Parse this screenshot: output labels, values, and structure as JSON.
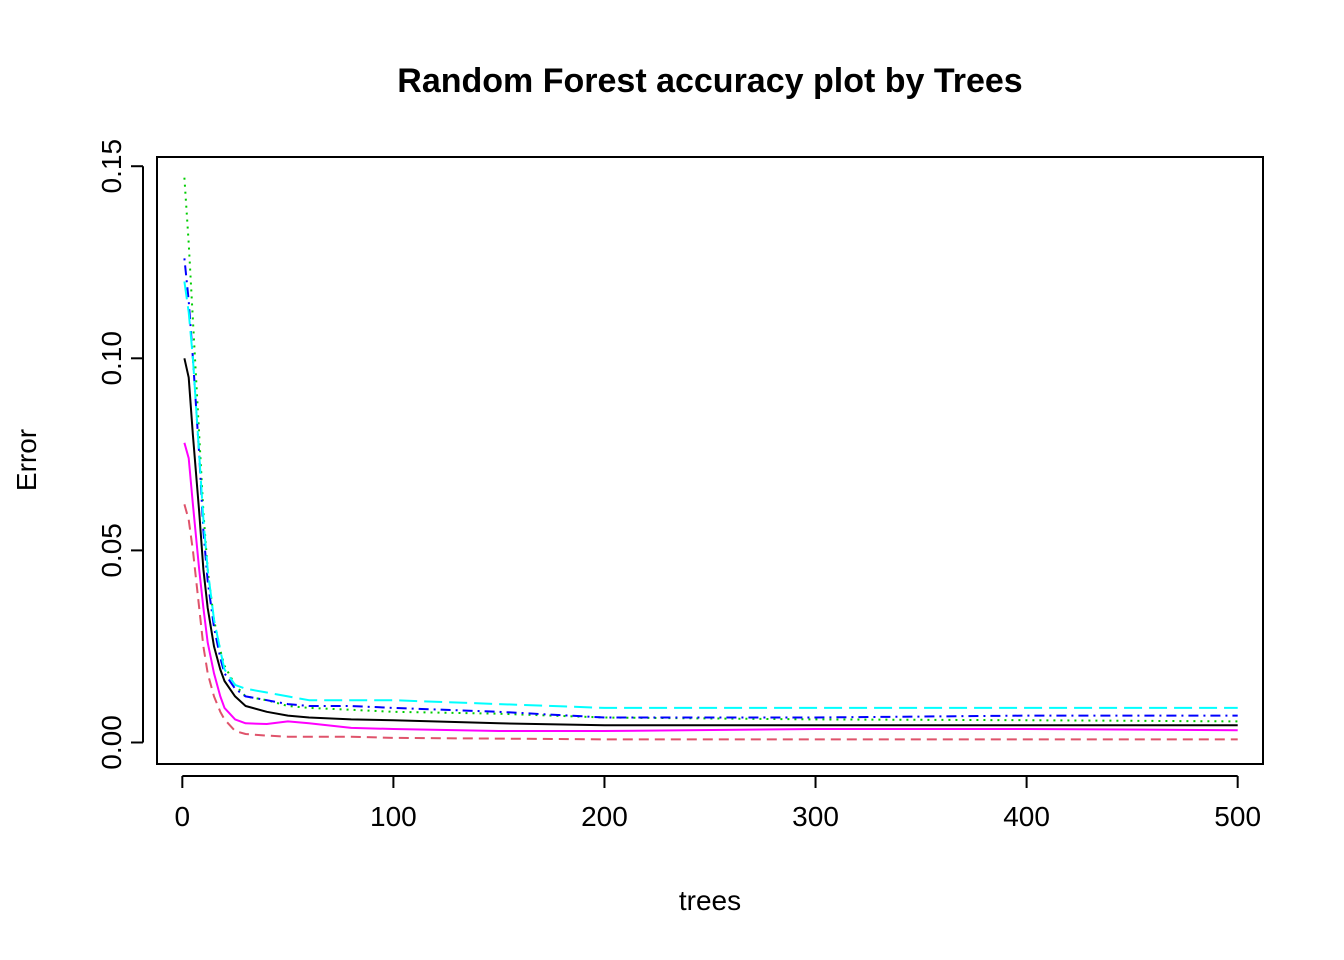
{
  "chart_data": {
    "type": "line",
    "title": "Random Forest accuracy plot by Trees",
    "xlabel": "trees",
    "ylabel": "Error",
    "xlim": [
      -12,
      512
    ],
    "ylim": [
      -0.0056,
      0.1524
    ],
    "x_ticks": [
      0,
      100,
      200,
      300,
      400,
      500
    ],
    "x_tick_labels": [
      "0",
      "100",
      "200",
      "300",
      "400",
      "500"
    ],
    "y_ticks": [
      0.0,
      0.05,
      0.1,
      0.15
    ],
    "y_tick_labels": [
      "0.00",
      "0.05",
      "0.10",
      "0.15"
    ],
    "grid": false,
    "legend": "none",
    "series": [
      {
        "color": "#000000",
        "dash": "solid",
        "x": [
          1,
          3,
          5,
          8,
          10,
          12,
          15,
          18,
          20,
          25,
          30,
          40,
          50,
          60,
          80,
          100,
          150,
          200,
          300,
          400,
          500
        ],
        "y": [
          0.1,
          0.095,
          0.08,
          0.06,
          0.045,
          0.035,
          0.025,
          0.019,
          0.016,
          0.012,
          0.0095,
          0.008,
          0.007,
          0.0065,
          0.006,
          0.0058,
          0.005,
          0.0045,
          0.0045,
          0.0045,
          0.0045
        ]
      },
      {
        "color": "#DF536B",
        "dash": "dashed",
        "x": [
          1,
          3,
          5,
          8,
          10,
          12,
          15,
          18,
          20,
          25,
          30,
          40,
          50,
          60,
          80,
          100,
          150,
          200,
          300,
          400,
          500
        ],
        "y": [
          0.062,
          0.058,
          0.05,
          0.035,
          0.025,
          0.018,
          0.012,
          0.008,
          0.006,
          0.003,
          0.0022,
          0.0018,
          0.0015,
          0.0015,
          0.0015,
          0.0012,
          0.001,
          0.0008,
          0.0008,
          0.0008,
          0.0008
        ]
      },
      {
        "color": "#00CD00",
        "dash": "dotted",
        "x": [
          1,
          3,
          5,
          8,
          10,
          12,
          15,
          18,
          20,
          25,
          30,
          40,
          50,
          60,
          80,
          100,
          150,
          200,
          300,
          400,
          500
        ],
        "y": [
          0.147,
          0.13,
          0.11,
          0.08,
          0.06,
          0.045,
          0.032,
          0.024,
          0.02,
          0.015,
          0.012,
          0.011,
          0.0095,
          0.009,
          0.0085,
          0.008,
          0.0075,
          0.0065,
          0.006,
          0.0058,
          0.0055
        ]
      },
      {
        "color": "#0000FF",
        "dash": "dotdash",
        "x": [
          1,
          3,
          5,
          8,
          10,
          12,
          15,
          18,
          20,
          25,
          30,
          40,
          50,
          60,
          80,
          100,
          150,
          200,
          300,
          400,
          500
        ],
        "y": [
          0.126,
          0.115,
          0.1,
          0.075,
          0.055,
          0.042,
          0.03,
          0.022,
          0.018,
          0.014,
          0.012,
          0.011,
          0.01,
          0.0095,
          0.0095,
          0.009,
          0.008,
          0.0065,
          0.0065,
          0.007,
          0.007
        ]
      },
      {
        "color": "#00FFFF",
        "dash": "longdash",
        "x": [
          1,
          3,
          5,
          8,
          10,
          12,
          15,
          18,
          20,
          25,
          30,
          40,
          50,
          60,
          80,
          100,
          150,
          200,
          300,
          400,
          500
        ],
        "y": [
          0.12,
          0.112,
          0.1,
          0.075,
          0.058,
          0.045,
          0.032,
          0.024,
          0.019,
          0.015,
          0.014,
          0.013,
          0.012,
          0.011,
          0.011,
          0.011,
          0.01,
          0.009,
          0.009,
          0.009,
          0.009
        ]
      },
      {
        "color": "#FF00FF",
        "dash": "solid",
        "x": [
          1,
          3,
          5,
          8,
          10,
          12,
          15,
          18,
          20,
          25,
          30,
          40,
          50,
          60,
          80,
          100,
          150,
          200,
          300,
          400,
          500
        ],
        "y": [
          0.078,
          0.074,
          0.062,
          0.045,
          0.035,
          0.026,
          0.018,
          0.012,
          0.009,
          0.006,
          0.005,
          0.0048,
          0.0055,
          0.005,
          0.0038,
          0.0035,
          0.003,
          0.003,
          0.0035,
          0.0035,
          0.0032
        ]
      }
    ]
  }
}
